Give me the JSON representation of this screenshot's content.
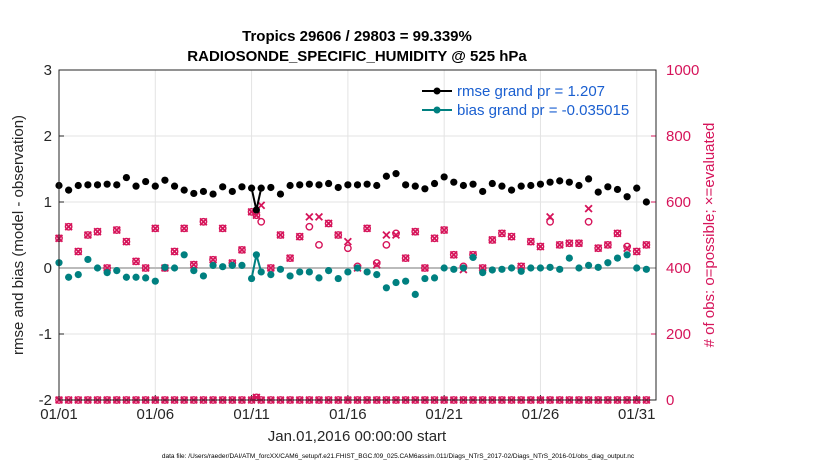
{
  "chart_data": {
    "type": "line",
    "title": "Tropics 29606 / 29803 = 99.339%",
    "subtitle": "RADIOSONDE_SPECIFIC_HUMIDITY @ 525 hPa",
    "xlabel": "Jan.01,2016 00:00:00 start",
    "ylabel_left": "rmse and bias (model - observation)",
    "ylabel_right": "# of obs: o=possible; ×=evaluated",
    "x_ticks": [
      "01/01",
      "01/06",
      "01/11",
      "01/16",
      "01/21",
      "01/26",
      "01/31"
    ],
    "x_tick_values": [
      1,
      6,
      11,
      16,
      21,
      26,
      31
    ],
    "xlim": [
      1,
      32
    ],
    "ylim_left": [
      -2,
      3
    ],
    "y_ticks_left": [
      "-2",
      "-1",
      "0",
      "1",
      "2",
      "3"
    ],
    "ylim_right": [
      0,
      1000
    ],
    "y_ticks_right": [
      "0",
      "200",
      "400",
      "600",
      "800",
      "1000"
    ],
    "grid": true,
    "legend_position": "top-right",
    "colors": {
      "rmse": "#000000",
      "bias": "#008080",
      "counts": "#d6145a",
      "zero_line": "#bbbbbb",
      "legend_text": "#1a5fd0"
    },
    "series": [
      {
        "name": "rmse grand pr = 1.207",
        "axis": "left",
        "x": [
          1.0,
          1.5,
          2.0,
          2.5,
          3.0,
          3.5,
          4.0,
          4.5,
          5.0,
          5.5,
          6.0,
          6.5,
          7.0,
          7.5,
          8.0,
          8.5,
          9.0,
          9.5,
          10.0,
          10.5,
          11.0,
          11.25,
          11.5,
          12.0,
          12.5,
          13.0,
          13.5,
          14.0,
          14.5,
          15.0,
          15.5,
          16.0,
          16.5,
          17.0,
          17.5,
          18.0,
          18.5,
          19.0,
          19.5,
          20.0,
          20.5,
          21.0,
          21.5,
          22.0,
          22.5,
          23.0,
          23.5,
          24.0,
          24.5,
          25.0,
          25.5,
          26.0,
          26.5,
          27.0,
          27.5,
          28.0,
          28.5,
          29.0,
          29.5,
          30.0,
          30.5,
          31.0,
          31.5
        ],
        "y": [
          1.25,
          1.18,
          1.25,
          1.26,
          1.26,
          1.27,
          1.26,
          1.37,
          1.24,
          1.31,
          1.24,
          1.33,
          1.24,
          1.18,
          1.13,
          1.16,
          1.12,
          1.23,
          1.16,
          1.23,
          1.21,
          0.88,
          1.21,
          1.22,
          1.12,
          1.25,
          1.26,
          1.27,
          1.26,
          1.28,
          1.22,
          1.26,
          1.26,
          1.27,
          1.25,
          1.39,
          1.43,
          1.26,
          1.24,
          1.2,
          1.28,
          1.38,
          1.3,
          1.25,
          1.27,
          1.16,
          1.28,
          1.24,
          1.18,
          1.24,
          1.25,
          1.27,
          1.3,
          1.32,
          1.3,
          1.25,
          1.35,
          1.15,
          1.23,
          1.19,
          1.08,
          1.21,
          1.0
        ]
      },
      {
        "name": "bias grand pr = -0.035015",
        "axis": "left",
        "x": [
          1.0,
          1.5,
          2.0,
          2.5,
          3.0,
          3.5,
          4.0,
          4.5,
          5.0,
          5.5,
          6.0,
          6.5,
          7.0,
          7.5,
          8.0,
          8.5,
          9.0,
          9.5,
          10.0,
          10.5,
          11.0,
          11.25,
          11.5,
          12.0,
          12.5,
          13.0,
          13.5,
          14.0,
          14.5,
          15.0,
          15.5,
          16.0,
          16.5,
          17.0,
          17.5,
          18.0,
          18.5,
          19.0,
          19.5,
          20.0,
          20.5,
          21.0,
          21.5,
          22.0,
          22.5,
          23.0,
          23.5,
          24.0,
          24.5,
          25.0,
          25.5,
          26.0,
          26.5,
          27.0,
          27.5,
          28.0,
          28.5,
          29.0,
          29.5,
          30.0,
          30.5,
          31.0,
          31.5
        ],
        "y": [
          0.08,
          -0.14,
          -0.1,
          0.13,
          0.0,
          -0.07,
          -0.04,
          -0.14,
          -0.14,
          -0.15,
          -0.2,
          0.01,
          0.0,
          0.2,
          -0.04,
          -0.12,
          0.04,
          0.02,
          0.04,
          0.04,
          -0.16,
          0.2,
          -0.06,
          -0.1,
          -0.02,
          -0.12,
          -0.06,
          -0.06,
          -0.15,
          -0.04,
          -0.16,
          -0.06,
          0.0,
          -0.06,
          -0.1,
          -0.3,
          -0.22,
          -0.2,
          -0.4,
          -0.16,
          -0.15,
          0.0,
          -0.02,
          0.0,
          0.16,
          -0.07,
          -0.03,
          -0.02,
          0.0,
          -0.05,
          0.0,
          0.0,
          0.01,
          -0.02,
          0.15,
          0.0,
          0.04,
          0.01,
          0.08,
          0.15,
          0.2,
          0.0,
          -0.02
        ]
      },
      {
        "name": "possible",
        "axis": "right",
        "x": [
          1.0,
          1.5,
          2.0,
          2.5,
          3.0,
          3.5,
          4.0,
          4.5,
          5.0,
          5.5,
          6.0,
          6.5,
          7.0,
          7.5,
          8.0,
          8.5,
          9.0,
          9.5,
          10.0,
          10.5,
          11.0,
          11.25,
          11.5,
          12.0,
          12.5,
          13.0,
          13.5,
          14.0,
          14.5,
          15.0,
          15.5,
          16.0,
          16.5,
          17.0,
          17.5,
          18.0,
          18.5,
          19.0,
          19.5,
          20.0,
          20.5,
          21.0,
          21.5,
          22.0,
          22.5,
          23.0,
          23.5,
          24.0,
          24.5,
          25.0,
          25.5,
          26.0,
          26.5,
          27.0,
          27.5,
          28.0,
          28.5,
          29.0,
          29.5,
          30.0,
          30.5,
          31.0,
          31.5
        ],
        "y": [
          490,
          525,
          450,
          500,
          510,
          400,
          515,
          480,
          420,
          400,
          520,
          400,
          450,
          520,
          410,
          540,
          425,
          520,
          415,
          455,
          570,
          560,
          540,
          400,
          500,
          430,
          495,
          525,
          470,
          535,
          500,
          460,
          405,
          520,
          415,
          470,
          505,
          430,
          510,
          400,
          490,
          515,
          440,
          405,
          440,
          400,
          485,
          505,
          495,
          405,
          480,
          465,
          540,
          470,
          475,
          475,
          540,
          460,
          470,
          505,
          465,
          450,
          470
        ]
      },
      {
        "name": "evaluated",
        "axis": "right",
        "x": [
          1.0,
          1.5,
          2.0,
          2.5,
          3.0,
          3.5,
          4.0,
          4.5,
          5.0,
          5.5,
          6.0,
          6.5,
          7.0,
          7.5,
          8.0,
          8.5,
          9.0,
          9.5,
          10.0,
          10.5,
          11.0,
          11.25,
          11.5,
          12.0,
          12.5,
          13.0,
          13.5,
          14.0,
          14.5,
          15.0,
          15.5,
          16.0,
          16.5,
          17.0,
          17.5,
          18.0,
          18.5,
          19.0,
          19.5,
          20.0,
          20.5,
          21.0,
          21.5,
          22.0,
          22.5,
          23.0,
          23.5,
          24.0,
          24.5,
          25.0,
          25.5,
          26.0,
          26.5,
          27.0,
          27.5,
          28.0,
          28.5,
          29.0,
          29.5,
          30.0,
          30.5,
          31.0,
          31.5
        ],
        "y": [
          490,
          525,
          450,
          500,
          510,
          400,
          515,
          480,
          420,
          400,
          520,
          400,
          450,
          520,
          410,
          540,
          425,
          520,
          415,
          455,
          570,
          560,
          590,
          400,
          500,
          430,
          495,
          555,
          555,
          535,
          500,
          480,
          400,
          520,
          410,
          500,
          500,
          430,
          510,
          400,
          490,
          515,
          440,
          395,
          440,
          400,
          485,
          505,
          495,
          405,
          480,
          465,
          555,
          470,
          475,
          475,
          580,
          460,
          470,
          505,
          460,
          450,
          470
        ]
      },
      {
        "name": "possible (total)",
        "axis": "right",
        "x": [
          1.0,
          1.5,
          2.0,
          2.5,
          3.0,
          3.5,
          4.0,
          4.5,
          5.0,
          5.5,
          6.0,
          6.5,
          7.0,
          7.5,
          8.0,
          8.5,
          9.0,
          9.5,
          10.0,
          10.5,
          11.0,
          11.25,
          11.5,
          12.0,
          12.5,
          13.0,
          13.5,
          14.0,
          14.5,
          15.0,
          15.5,
          16.0,
          16.5,
          17.0,
          17.5,
          18.0,
          18.5,
          19.0,
          19.5,
          20.0,
          20.5,
          21.0,
          21.5,
          22.0,
          22.5,
          23.0,
          23.5,
          24.0,
          24.5,
          25.0,
          25.5,
          26.0,
          26.5,
          27.0,
          27.5,
          28.0,
          28.5,
          29.0,
          29.5,
          30.0,
          30.5,
          31.0,
          31.5
        ],
        "y": [
          0,
          0,
          0,
          0,
          0,
          0,
          0,
          0,
          0,
          0,
          0,
          0,
          0,
          0,
          0,
          0,
          0,
          0,
          0,
          0,
          0,
          8,
          0,
          0,
          0,
          0,
          0,
          0,
          0,
          0,
          0,
          0,
          0,
          0,
          0,
          0,
          0,
          0,
          0,
          0,
          0,
          0,
          0,
          0,
          0,
          0,
          0,
          0,
          0,
          0,
          0,
          0,
          0,
          0,
          0,
          0,
          0,
          0,
          0,
          0,
          0,
          0,
          0
        ]
      }
    ]
  },
  "footer": "data file: /Users/raeder/DAI/ATM_forcXX/CAM6_setup/f.e21.FHIST_BGC.f09_025.CAM6assim.011/Diags_NTrS_2017-02/Diags_NTrS_2016-01/obs_diag_output.nc"
}
